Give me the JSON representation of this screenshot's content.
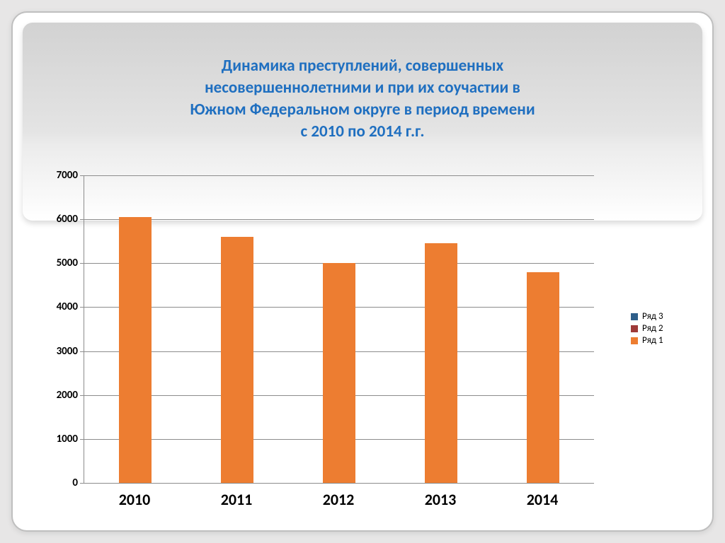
{
  "title_lines": [
    "Динамика преступлений, совершенных",
    "несовершеннолетними и при их соучастии в",
    "Южном Федеральном округе в период времени",
    "с 2010 по 2014 г.г."
  ],
  "title_color": "#1f6fc0",
  "title_fontsize": 23,
  "chart": {
    "type": "bar",
    "categories": [
      "2010",
      "2011",
      "2012",
      "2013",
      "2014"
    ],
    "values": [
      6050,
      5600,
      5000,
      5450,
      4800
    ],
    "ylim_min": 0,
    "ylim_max": 7000,
    "ytick_step": 1000,
    "bar_color": "#ed7d31",
    "grid_color": "#8c8c8c",
    "axis_color": "#8c8c8c",
    "ytick_fontsize": 15,
    "xtick_fontsize": 22,
    "bar_rel_width": 0.32
  },
  "legend": {
    "fontsize": 13,
    "items": [
      {
        "label": "Ряд 3",
        "color": "#2e5f8a"
      },
      {
        "label": "Ряд 2",
        "color": "#9e3a38"
      },
      {
        "label": "Ряд 1",
        "color": "#ed7d31"
      }
    ]
  },
  "frame": {
    "outer_bg": "#e7e6e6",
    "inner_bg": "#ffffff",
    "border_color": "#bfbfbf",
    "band_top": "#d2d2d2",
    "band_bottom": "#ffffff"
  }
}
